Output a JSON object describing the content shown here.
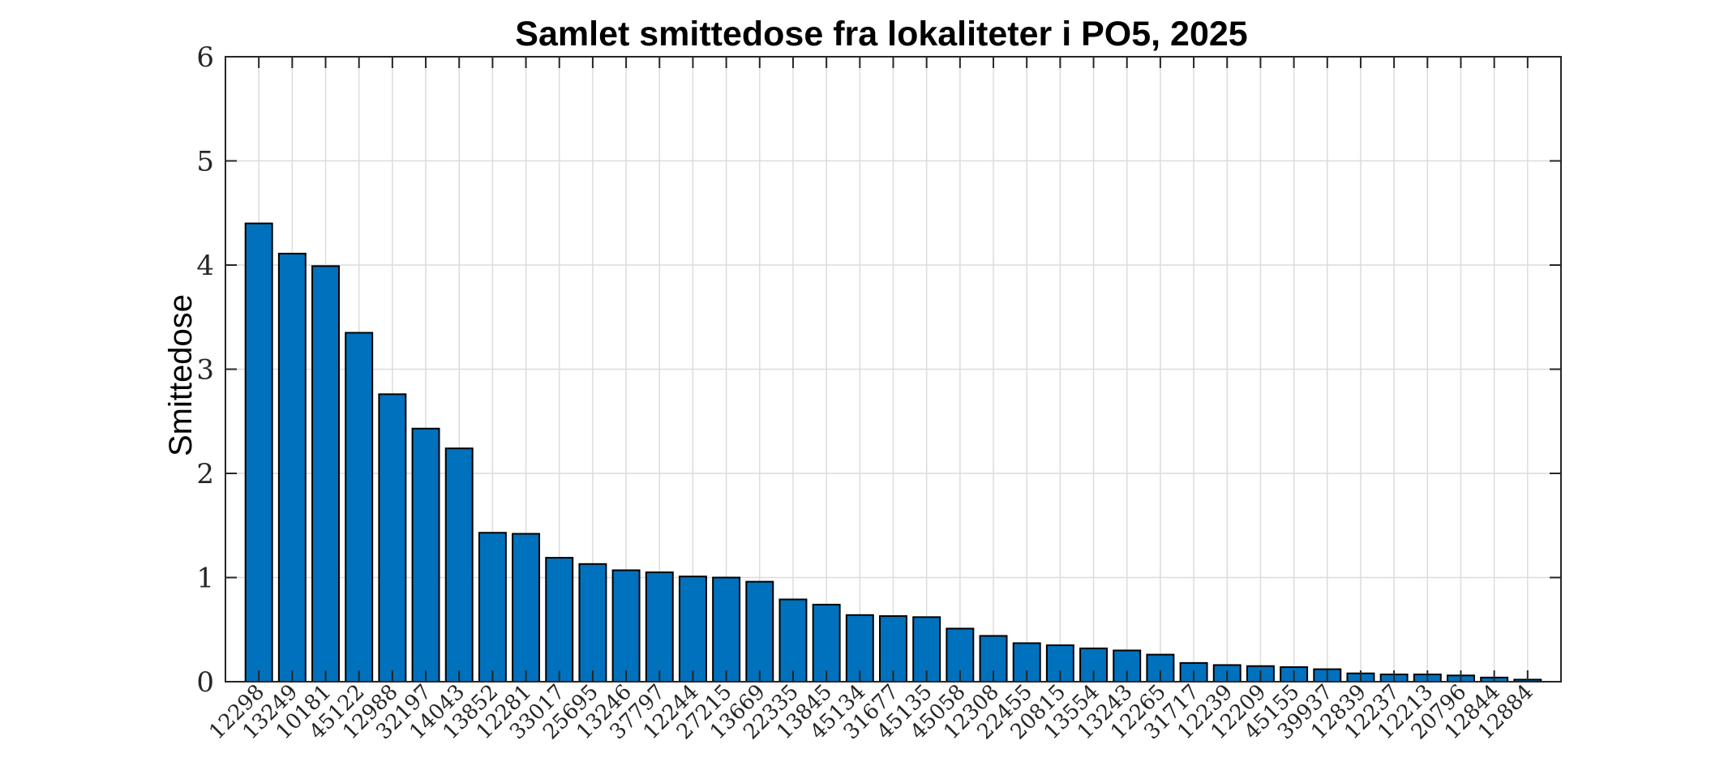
{
  "chart_data": {
    "type": "bar",
    "title": "Samlet smittedose fra lokaliteter i PO5, 2025",
    "xlabel": "",
    "ylabel": "Smittedose",
    "ylim": [
      0,
      6
    ],
    "yticks": [
      "0",
      "1",
      "2",
      "3",
      "4",
      "5",
      "6"
    ],
    "grid": true,
    "bar_color": "#0072BD",
    "categories": [
      "12298",
      "13249",
      "10181",
      "45122",
      "12988",
      "32197",
      "14043",
      "13852",
      "12281",
      "33017",
      "25695",
      "13246",
      "37797",
      "12244",
      "27215",
      "13669",
      "22335",
      "13845",
      "45134",
      "31677",
      "45135",
      "45058",
      "12308",
      "22455",
      "20815",
      "13554",
      "13243",
      "12265",
      "31717",
      "12239",
      "12209",
      "45155",
      "39937",
      "12839",
      "12237",
      "12213",
      "20796",
      "12844",
      "12884"
    ],
    "values": [
      4.4,
      4.11,
      3.99,
      3.35,
      2.76,
      2.43,
      2.24,
      1.43,
      1.42,
      1.19,
      1.13,
      1.07,
      1.05,
      1.01,
      1.0,
      0.96,
      0.79,
      0.74,
      0.64,
      0.63,
      0.62,
      0.51,
      0.44,
      0.37,
      0.35,
      0.32,
      0.3,
      0.26,
      0.18,
      0.16,
      0.15,
      0.14,
      0.12,
      0.08,
      0.07,
      0.07,
      0.06,
      0.04,
      0.02
    ]
  }
}
